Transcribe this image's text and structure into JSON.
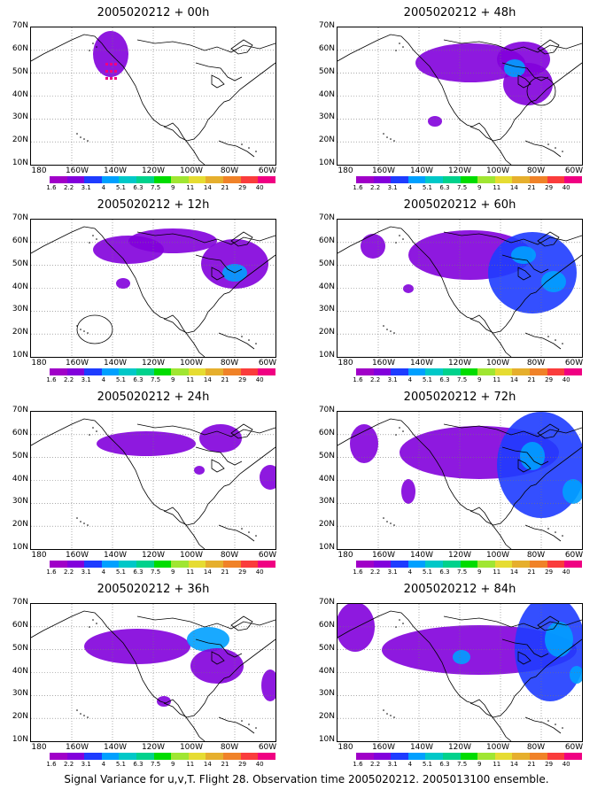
{
  "panels": [
    {
      "title": "2005020212 + 00h",
      "level": 0,
      "col": 0,
      "row": 0
    },
    {
      "title": "2005020212 + 48h",
      "level": 4,
      "col": 1,
      "row": 0
    },
    {
      "title": "2005020212 + 12h",
      "level": 1,
      "col": 0,
      "row": 1
    },
    {
      "title": "2005020212 + 60h",
      "level": 5,
      "col": 1,
      "row": 1
    },
    {
      "title": "2005020212 + 24h",
      "level": 2,
      "col": 0,
      "row": 2
    },
    {
      "title": "2005020212 + 72h",
      "level": 6,
      "col": 1,
      "row": 2
    },
    {
      "title": "2005020212 + 36h",
      "level": 3,
      "col": 0,
      "row": 3
    },
    {
      "title": "2005020212 + 84h",
      "level": 7,
      "col": 1,
      "row": 3
    }
  ],
  "lat_labels": [
    "70N",
    "60N",
    "50N",
    "40N",
    "30N",
    "20N",
    "10N"
  ],
  "lon_labels": [
    "180",
    "160W",
    "140W",
    "120W",
    "100W",
    "80W",
    "60W"
  ],
  "colorbar": {
    "labels": [
      "1.6",
      "2.2",
      "3.1",
      "4",
      "5.1",
      "6.3",
      "7.5",
      "9",
      "11",
      "14",
      "21",
      "29",
      "40"
    ],
    "colors": [
      "#a000c8",
      "#8200dc",
      "#1e3cff",
      "#00a0ff",
      "#00c8c8",
      "#00d28c",
      "#00dc00",
      "#a0e632",
      "#e6dc32",
      "#e6af2d",
      "#f08228",
      "#fa3c3c",
      "#f00082"
    ]
  },
  "caption": "Signal Variance for u,v,T. Flight 28. Observation time 2005020212. 2005013100 ensemble."
}
